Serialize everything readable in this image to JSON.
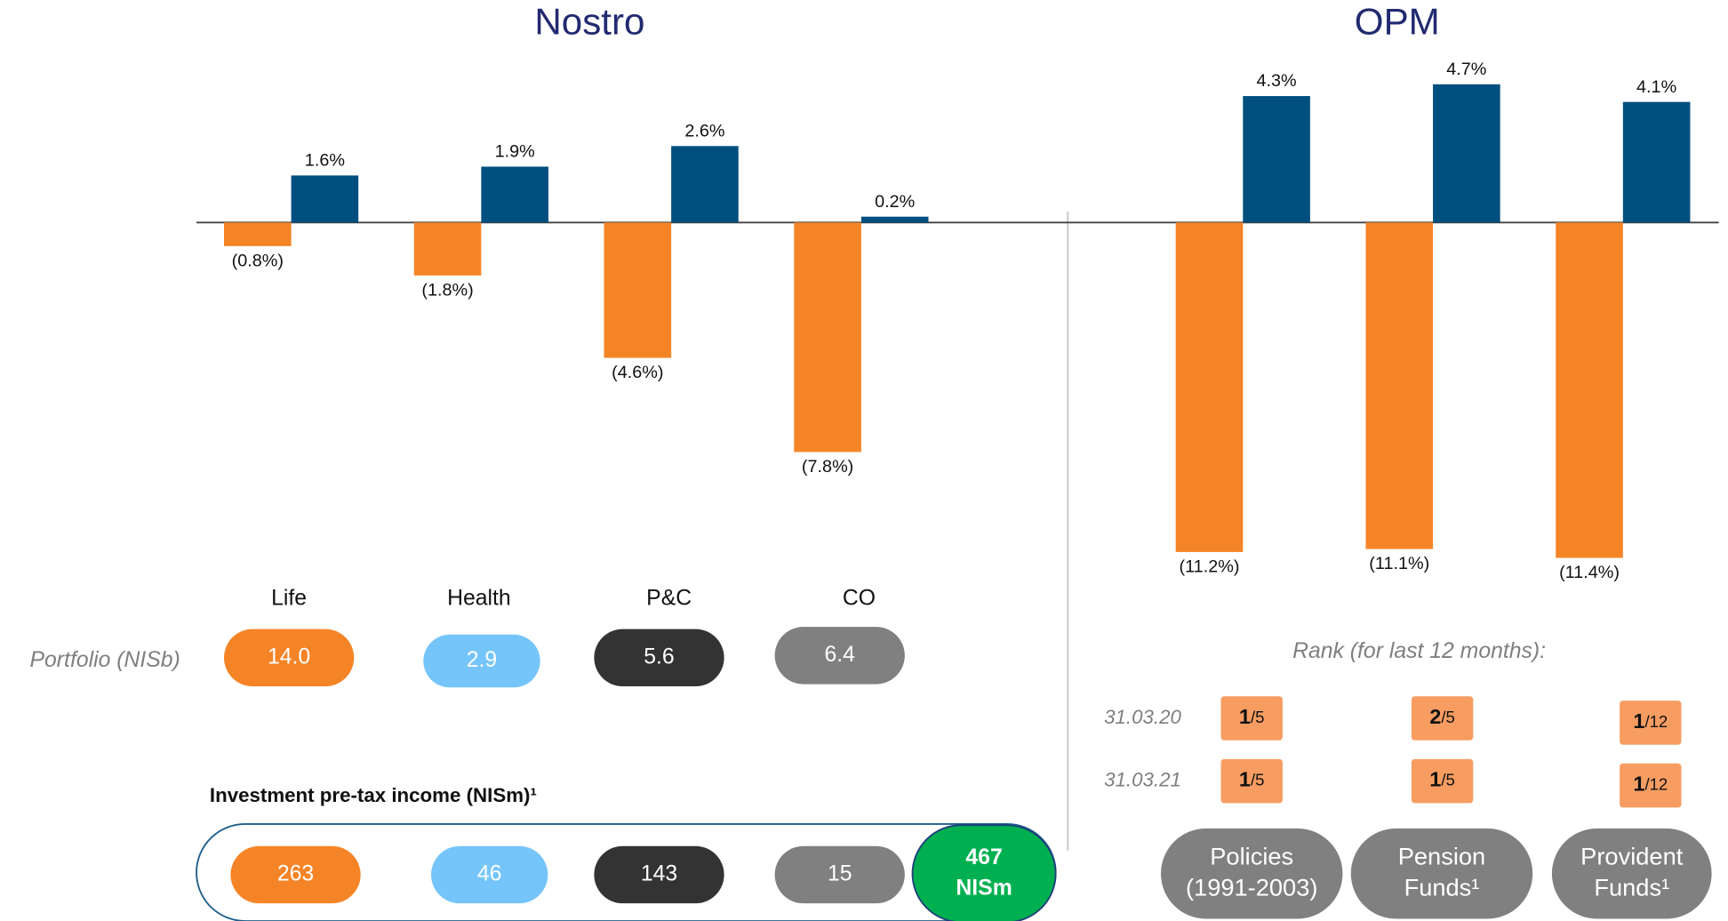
{
  "chart_data": [
    {
      "type": "bar",
      "title": "Nostro",
      "categories": [
        "Life",
        "Health",
        "P&C",
        "CO"
      ],
      "series": [
        {
          "color": "#f58426",
          "values": [
            -0.8,
            -1.8,
            -4.6,
            -7.8
          ],
          "value_labels": [
            "(0.8%)",
            "(1.8%)",
            "(4.6%)",
            "(7.8%)"
          ]
        },
        {
          "color": "#004f7e",
          "values": [
            1.6,
            1.9,
            2.6,
            0.2
          ],
          "value_labels": [
            "1.6%",
            "1.9%",
            "2.6%",
            "0.2%"
          ]
        }
      ],
      "ylim": [
        -12.5,
        5
      ]
    },
    {
      "type": "bar",
      "title": "OPM",
      "categories": [
        [
          "Policies",
          "(1991-2003)"
        ],
        [
          "Pension",
          "Funds¹"
        ],
        [
          "Provident",
          "Funds¹"
        ]
      ],
      "series": [
        {
          "color": "#f58426",
          "values": [
            -11.2,
            -11.1,
            -11.4
          ],
          "value_labels": [
            "(11.2%)",
            "(11.1%)",
            "(11.4%)"
          ]
        },
        {
          "color": "#004f7e",
          "values": [
            4.3,
            4.7,
            4.1
          ],
          "value_labels": [
            "4.3%",
            "4.7%",
            "4.1%"
          ]
        }
      ],
      "ylim": [
        -12.5,
        5
      ]
    }
  ],
  "portfolio": {
    "label": "Portfolio (NISb)",
    "values": [
      "14.0",
      "2.9",
      "5.6",
      "6.4"
    ],
    "colors": [
      "#f58426",
      "#75c5fa",
      "#333333",
      "#808080"
    ]
  },
  "income": {
    "title": "Investment pre-tax income (NISm)¹",
    "values": [
      "263",
      "46",
      "143",
      "15"
    ],
    "total": [
      "467",
      "NISm"
    ],
    "total_color": "#00b050"
  },
  "rank": {
    "title": "Rank (for last 12 months):",
    "color": "#f79d62",
    "rows": [
      {
        "date": "31.03.20",
        "cells": [
          [
            "1",
            "/5"
          ],
          [
            "2",
            "/5"
          ],
          [
            "1",
            "/12"
          ]
        ]
      },
      {
        "date": "31.03.21",
        "cells": [
          [
            "1",
            "/5"
          ],
          [
            "1",
            "/5"
          ],
          [
            "1",
            "/12"
          ]
        ]
      }
    ]
  }
}
